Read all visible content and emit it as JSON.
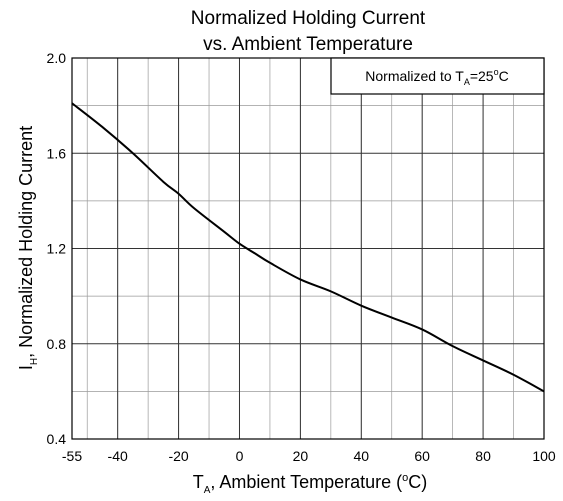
{
  "chart_data": {
    "type": "line",
    "title_line1": "Normalized Holding Current",
    "title_line2": "vs. Ambient Temperature",
    "xlabel": {
      "main": "T",
      "sub": "A",
      "rest": ", Ambient Temperature (",
      "sup": "o",
      "end": "C)"
    },
    "ylabel": {
      "main": "I",
      "sub": "H",
      "rest": ", Normalized Holding Current"
    },
    "annotation": {
      "text": "Normalized to T",
      "sub": "A",
      "value": "=25",
      "sup": "o",
      "end": "C"
    },
    "xlim": [
      -55,
      100
    ],
    "ylim": [
      0.4,
      2.0
    ],
    "x_ticks": [
      -55,
      -40,
      -20,
      0,
      20,
      40,
      60,
      80,
      100
    ],
    "x_tick_labels": [
      "-55",
      "-40",
      "-20",
      "0",
      "20",
      "40",
      "60",
      "80",
      "100"
    ],
    "y_ticks": [
      0.4,
      0.8,
      1.2,
      1.6,
      2.0
    ],
    "y_tick_labels": [
      "0.4",
      "0.8",
      "1.2",
      "1.6",
      "2.0"
    ],
    "x_minor_grid": [
      -50,
      -40,
      -30,
      -20,
      -10,
      0,
      10,
      20,
      30,
      40,
      50,
      60,
      70,
      80,
      90
    ],
    "y_minor_grid": [
      0.6,
      1.0,
      1.4,
      1.8
    ],
    "grid": true,
    "series": [
      {
        "x": [
          -55,
          -45,
          -35,
          -25,
          -20,
          -15,
          -5,
          0,
          5,
          10,
          20,
          30,
          40,
          50,
          60,
          70,
          80,
          90,
          100
        ],
        "y": [
          1.81,
          1.71,
          1.6,
          1.48,
          1.43,
          1.37,
          1.27,
          1.22,
          1.18,
          1.14,
          1.07,
          1.02,
          0.96,
          0.91,
          0.86,
          0.79,
          0.73,
          0.67,
          0.6
        ],
        "color": "#000000"
      }
    ]
  }
}
